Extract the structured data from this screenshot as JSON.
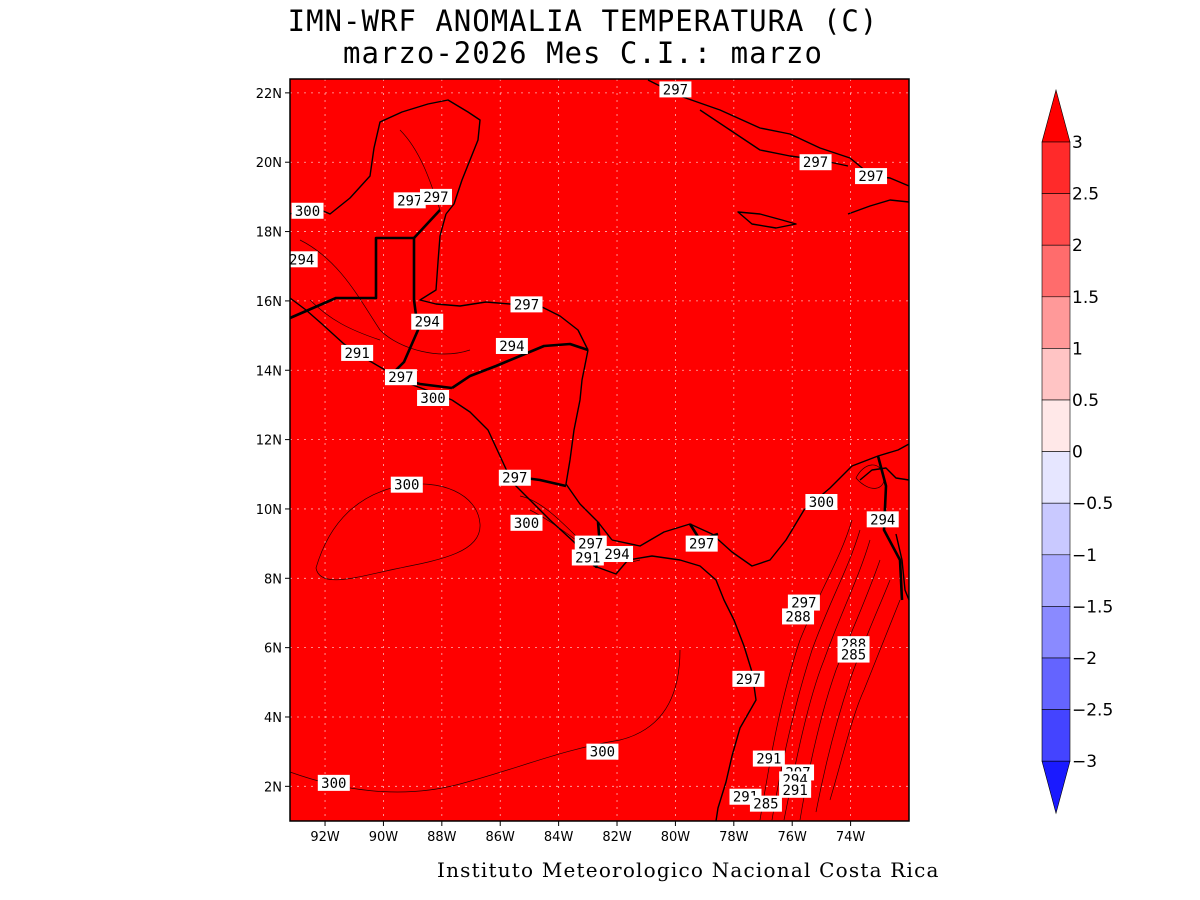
{
  "title": {
    "line1": "IMN-WRF  ANOMALIA TEMPERATURA (C)",
    "line2": "marzo-2026 Mes C.I.: marzo"
  },
  "footer": "Instituto Meteorologico Nacional Costa Rica",
  "map": {
    "lon_range": [
      -93.2,
      -72.0
    ],
    "lat_range": [
      1.0,
      22.4
    ],
    "fill_color": "#ff0000",
    "grid": true,
    "lat_ticks": [
      "22N",
      "20N",
      "18N",
      "16N",
      "14N",
      "12N",
      "10N",
      "8N",
      "6N",
      "4N",
      "2N"
    ],
    "lat_values": [
      22,
      20,
      18,
      16,
      14,
      12,
      10,
      8,
      6,
      4,
      2
    ],
    "lon_ticks": [
      "92W",
      "90W",
      "88W",
      "86W",
      "84W",
      "82W",
      "80W",
      "78W",
      "76W",
      "74W"
    ],
    "lon_values": [
      -92,
      -90,
      -88,
      -86,
      -84,
      -82,
      -80,
      -78,
      -76,
      -74
    ]
  },
  "contour_labels": [
    {
      "text": "297",
      "lon": -80.0,
      "lat": 22.1
    },
    {
      "text": "297",
      "lon": -75.2,
      "lat": 20.0
    },
    {
      "text": "297",
      "lon": -73.3,
      "lat": 19.6
    },
    {
      "text": "300",
      "lon": -92.6,
      "lat": 18.6
    },
    {
      "text": "297",
      "lon": -89.1,
      "lat": 18.9
    },
    {
      "text": "297",
      "lon": -88.2,
      "lat": 19.0
    },
    {
      "text": "294",
      "lon": -92.8,
      "lat": 17.2
    },
    {
      "text": "297",
      "lon": -85.1,
      "lat": 15.9
    },
    {
      "text": "294",
      "lon": -88.5,
      "lat": 15.4
    },
    {
      "text": "294",
      "lon": -85.6,
      "lat": 14.7
    },
    {
      "text": "291",
      "lon": -90.9,
      "lat": 14.5
    },
    {
      "text": "297",
      "lon": -89.4,
      "lat": 13.8
    },
    {
      "text": "300",
      "lon": -88.3,
      "lat": 13.2
    },
    {
      "text": "297",
      "lon": -85.5,
      "lat": 10.9
    },
    {
      "text": "300",
      "lon": -89.2,
      "lat": 10.7
    },
    {
      "text": "300",
      "lon": -85.1,
      "lat": 9.6
    },
    {
      "text": "297",
      "lon": -82.9,
      "lat": 9.0
    },
    {
      "text": "291",
      "lon": -83.0,
      "lat": 8.6
    },
    {
      "text": "294",
      "lon": -82.0,
      "lat": 8.7
    },
    {
      "text": "297",
      "lon": -79.1,
      "lat": 9.0
    },
    {
      "text": "300",
      "lon": -75.0,
      "lat": 10.2
    },
    {
      "text": "294",
      "lon": -72.9,
      "lat": 9.7
    },
    {
      "text": "297",
      "lon": -75.6,
      "lat": 7.3
    },
    {
      "text": "288",
      "lon": -75.8,
      "lat": 6.9
    },
    {
      "text": "288",
      "lon": -73.9,
      "lat": 6.1
    },
    {
      "text": "285",
      "lon": -73.9,
      "lat": 5.8
    },
    {
      "text": "297",
      "lon": -77.5,
      "lat": 5.1
    },
    {
      "text": "300",
      "lon": -82.5,
      "lat": 3.0
    },
    {
      "text": "291",
      "lon": -76.8,
      "lat": 2.8
    },
    {
      "text": "297",
      "lon": -75.8,
      "lat": 2.4
    },
    {
      "text": "294",
      "lon": -75.9,
      "lat": 2.2
    },
    {
      "text": "291",
      "lon": -75.9,
      "lat": 1.9
    },
    {
      "text": "291",
      "lon": -77.6,
      "lat": 1.7
    },
    {
      "text": "285",
      "lon": -76.9,
      "lat": 1.5
    },
    {
      "text": "300",
      "lon": -91.7,
      "lat": 2.1
    }
  ],
  "colorbar": {
    "labels": [
      "3",
      "2.5",
      "2",
      "1.5",
      "1",
      "0.5",
      "0",
      "-0.5",
      "-1",
      "-1.5",
      "-2",
      "-2.5",
      "-3"
    ],
    "colors": [
      "#ff2a2a",
      "#ff4a4a",
      "#ff6c6c",
      "#ff9999",
      "#ffc4c4",
      "#ffe8e8",
      "#e6e6ff",
      "#c9c9ff",
      "#aaaaff",
      "#8a8aff",
      "#6464ff",
      "#4444ff"
    ],
    "over_color": "#ff0000",
    "under_color": "#1a1aff"
  }
}
